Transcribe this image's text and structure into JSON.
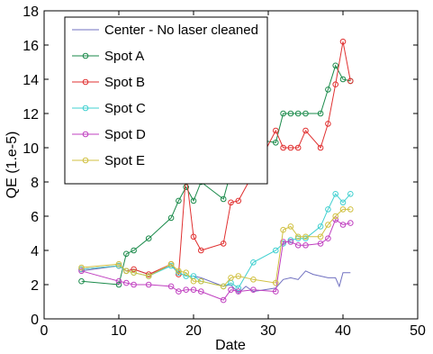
{
  "chart_data": {
    "type": "line",
    "xlabel": "Date",
    "ylabel": "QE (1.e-5)",
    "xlim": [
      0,
      50
    ],
    "ylim": [
      0,
      18
    ],
    "x_ticks": [
      0,
      10,
      20,
      30,
      40,
      50
    ],
    "y_ticks": [
      0,
      2,
      4,
      6,
      8,
      10,
      12,
      14,
      16,
      18
    ],
    "grid": false,
    "legend_position": "top-left",
    "series": [
      {
        "name": "Center - No laser cleaned",
        "color": "#7070c0",
        "marker": "none",
        "points": [
          [
            5,
            2.8
          ],
          [
            10,
            3.1
          ],
          [
            11,
            2.8
          ],
          [
            12,
            2.9
          ],
          [
            14,
            2.6
          ],
          [
            17,
            3.1
          ],
          [
            18,
            2.7
          ],
          [
            19,
            2.5
          ],
          [
            20,
            2.5
          ],
          [
            21,
            2.4
          ],
          [
            24,
            1.9
          ],
          [
            25,
            2.0
          ],
          [
            26,
            1.5
          ],
          [
            27,
            1.9
          ],
          [
            28,
            1.6
          ],
          [
            31,
            1.8
          ],
          [
            32,
            2.3
          ],
          [
            33,
            2.4
          ],
          [
            34,
            2.3
          ],
          [
            35,
            2.8
          ],
          [
            36,
            2.6
          ],
          [
            37,
            2.5
          ],
          [
            38,
            2.4
          ],
          [
            39,
            2.4
          ],
          [
            39.5,
            1.9
          ],
          [
            40,
            2.7
          ],
          [
            41,
            2.7
          ]
        ]
      },
      {
        "name": "Spot A",
        "color": "#1a8a4a",
        "marker": "circle",
        "points": [
          [
            5,
            2.2
          ],
          [
            10,
            2.0
          ],
          [
            11,
            3.8
          ],
          [
            12,
            4.0
          ],
          [
            14,
            4.7
          ],
          [
            17,
            5.9
          ],
          [
            18,
            6.9
          ],
          [
            19,
            7.7
          ],
          [
            20,
            6.9
          ],
          [
            21,
            8.0
          ],
          [
            24,
            7.0
          ],
          [
            25,
            8.6
          ],
          [
            26,
            8.4
          ],
          [
            28,
            10.5
          ],
          [
            31,
            10.3
          ],
          [
            32,
            12.0
          ],
          [
            33,
            12.0
          ],
          [
            34,
            12.0
          ],
          [
            35,
            12.0
          ],
          [
            37,
            12.0
          ],
          [
            38,
            13.4
          ],
          [
            39,
            14.8
          ],
          [
            40,
            14.0
          ],
          [
            41,
            13.9
          ]
        ]
      },
      {
        "name": "Spot B",
        "color": "#e03030",
        "marker": "circle",
        "points": [
          [
            5,
            2.9
          ],
          [
            10,
            3.1
          ],
          [
            11,
            2.8
          ],
          [
            12,
            2.9
          ],
          [
            14,
            2.6
          ],
          [
            17,
            3.2
          ],
          [
            18,
            2.6
          ],
          [
            19,
            8.5
          ],
          [
            20,
            4.8
          ],
          [
            21,
            4.0
          ],
          [
            24,
            4.4
          ],
          [
            25,
            6.8
          ],
          [
            26,
            6.9
          ],
          [
            28,
            8.5
          ],
          [
            31,
            11.0
          ],
          [
            32,
            10.0
          ],
          [
            33,
            10.0
          ],
          [
            34,
            10.0
          ],
          [
            35,
            11.0
          ],
          [
            37,
            10.0
          ],
          [
            38,
            11.4
          ],
          [
            39,
            13.7
          ],
          [
            40,
            16.2
          ],
          [
            41,
            13.9
          ]
        ]
      },
      {
        "name": "Spot C",
        "color": "#40d0d0",
        "marker": "circle",
        "points": [
          [
            5,
            2.9
          ],
          [
            10,
            3.1
          ],
          [
            11,
            2.8
          ],
          [
            12,
            2.7
          ],
          [
            14,
            2.5
          ],
          [
            17,
            3.1
          ],
          [
            18,
            2.7
          ],
          [
            19,
            2.5
          ],
          [
            20,
            2.5
          ],
          [
            21,
            2.2
          ],
          [
            24,
            1.9
          ],
          [
            25,
            2.1
          ],
          [
            26,
            1.8
          ],
          [
            28,
            3.3
          ],
          [
            31,
            4.0
          ],
          [
            32,
            4.4
          ],
          [
            33,
            4.6
          ],
          [
            34,
            4.7
          ],
          [
            35,
            4.7
          ],
          [
            37,
            5.4
          ],
          [
            38,
            6.4
          ],
          [
            39,
            7.3
          ],
          [
            40,
            6.8
          ],
          [
            41,
            7.3
          ]
        ]
      },
      {
        "name": "Spot D",
        "color": "#c040c0",
        "marker": "circle",
        "points": [
          [
            5,
            2.8
          ],
          [
            10,
            2.2
          ],
          [
            11,
            2.1
          ],
          [
            12,
            2.0
          ],
          [
            14,
            2.0
          ],
          [
            17,
            1.9
          ],
          [
            18,
            1.6
          ],
          [
            19,
            1.7
          ],
          [
            20,
            1.7
          ],
          [
            21,
            1.6
          ],
          [
            24,
            1.1
          ],
          [
            25,
            1.7
          ],
          [
            26,
            1.6
          ],
          [
            28,
            1.7
          ],
          [
            31,
            1.6
          ],
          [
            32,
            4.5
          ],
          [
            33,
            4.5
          ],
          [
            34,
            4.3
          ],
          [
            35,
            4.3
          ],
          [
            37,
            4.4
          ],
          [
            38,
            4.7
          ],
          [
            39,
            5.8
          ],
          [
            40,
            5.5
          ],
          [
            41,
            5.6
          ]
        ]
      },
      {
        "name": "Spot E",
        "color": "#d0c040",
        "marker": "circle",
        "points": [
          [
            5,
            3.0
          ],
          [
            10,
            3.2
          ],
          [
            11,
            2.8
          ],
          [
            12,
            2.7
          ],
          [
            14,
            2.5
          ],
          [
            17,
            3.2
          ],
          [
            18,
            2.8
          ],
          [
            19,
            2.7
          ],
          [
            20,
            2.2
          ],
          [
            21,
            2.2
          ],
          [
            24,
            1.9
          ],
          [
            25,
            2.4
          ],
          [
            26,
            2.5
          ],
          [
            28,
            2.3
          ],
          [
            31,
            2.1
          ],
          [
            32,
            5.2
          ],
          [
            33,
            5.4
          ],
          [
            34,
            4.8
          ],
          [
            35,
            4.8
          ],
          [
            37,
            4.8
          ],
          [
            38,
            5.5
          ],
          [
            39,
            6.0
          ],
          [
            40,
            6.4
          ],
          [
            41,
            6.4
          ]
        ]
      }
    ]
  }
}
